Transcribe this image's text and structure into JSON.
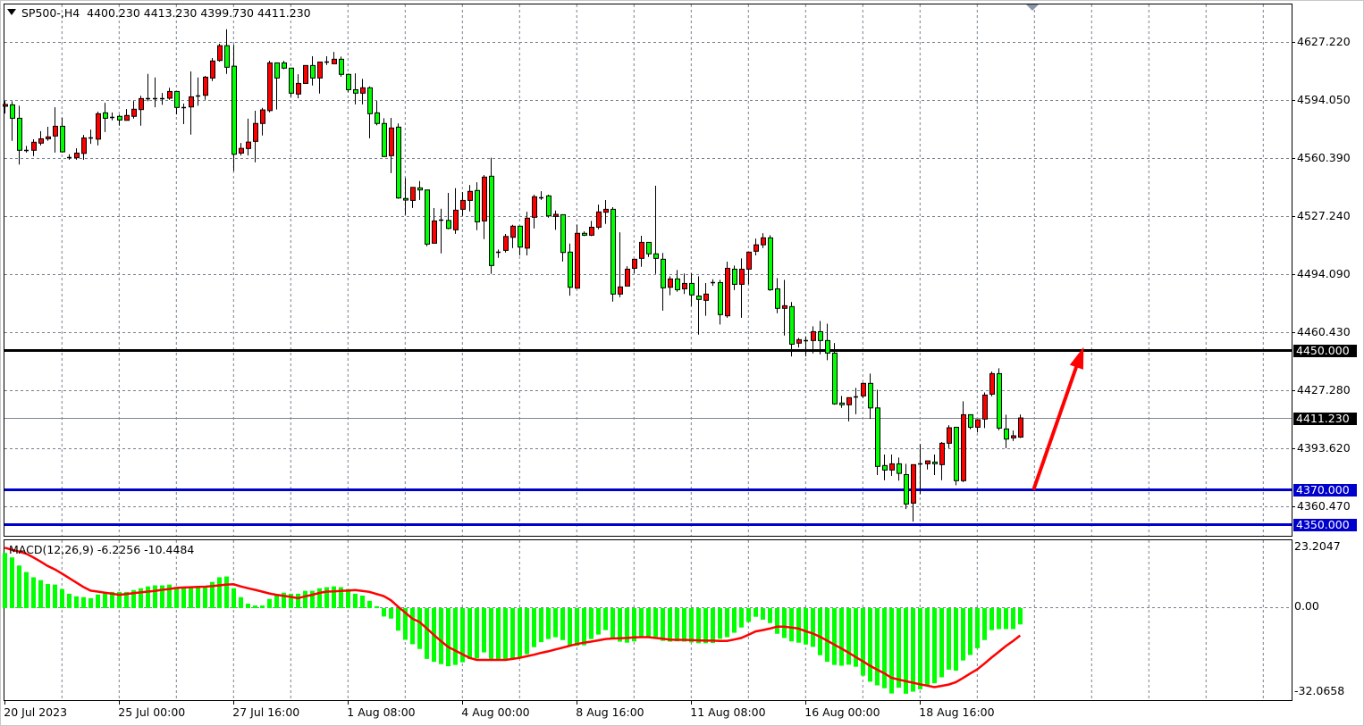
{
  "header": {
    "symbol": "SP500-,H4",
    "ohlc": "4400.230 4413.230 4399.730 4411.230",
    "menu_icon": "triangle-down-icon"
  },
  "colors": {
    "bull_body": "#ff0000",
    "bear_body": "#00ff00",
    "wick": "#000000",
    "grid": "#77808c",
    "resistance": "#000000",
    "support": "#0000cc",
    "macd_hist": "#00ff00",
    "macd_signal": "#ff0000",
    "arrow": "#ff0000",
    "current_price_line": "#808890"
  },
  "price_axis": {
    "labels": [
      "4627.220",
      "4594.050",
      "4560.390",
      "4527.240",
      "4494.090",
      "4460.430",
      "4427.280",
      "4393.620",
      "4360.470"
    ]
  },
  "levels": [
    {
      "price": 4450.0,
      "label": "4450.000",
      "kind": "resistance"
    },
    {
      "price": 4411.23,
      "label": "4411.230",
      "kind": "current"
    },
    {
      "price": 4370.0,
      "label": "4370.000",
      "kind": "support"
    },
    {
      "price": 4350.0,
      "label": "4350.000",
      "kind": "support"
    }
  ],
  "time_axis": [
    {
      "label": "20 Jul 2023",
      "bar": 0
    },
    {
      "label": "25 Jul 00:00",
      "bar": 16
    },
    {
      "label": "27 Jul 16:00",
      "bar": 32
    },
    {
      "label": "1 Aug 08:00",
      "bar": 48
    },
    {
      "label": "4 Aug 00:00",
      "bar": 64
    },
    {
      "label": "8 Aug 16:00",
      "bar": 80
    },
    {
      "label": "11 Aug 08:00",
      "bar": 96
    },
    {
      "label": "16 Aug 00:00",
      "bar": 112
    },
    {
      "label": "18 Aug 16:00",
      "bar": 128
    }
  ],
  "macd": {
    "label": "MACD(12,26,9) -6.2256 -10.4484",
    "axis_labels": [
      "23.2047",
      "0.00",
      "-32.0658"
    ]
  },
  "chart_data": [
    {
      "type": "candlestick",
      "title": "SP500-,H4",
      "timeframe": "H4",
      "ylim": [
        4341.0,
        4651.3
      ],
      "grid": true,
      "annotations": [
        {
          "type": "arrow",
          "from": {
            "bar": 144,
            "price": 4370.0
          },
          "to": {
            "bar": 151,
            "price": 4452.0
          }
        }
      ],
      "ohlc": [
        [
          4590.3,
          4593.3,
          4586.1,
          4591.3
        ],
        [
          4591.1,
          4593.2,
          4570.4,
          4583.4
        ],
        [
          4583.4,
          4590.6,
          4556.8,
          4565.0
        ],
        [
          4565.2,
          4567.5,
          4563.7,
          4565.0
        ],
        [
          4565.0,
          4571.3,
          4561.7,
          4569.6
        ],
        [
          4569.1,
          4576.0,
          4567.8,
          4571.6
        ],
        [
          4571.6,
          4578.5,
          4570.4,
          4572.7
        ],
        [
          4573.2,
          4589.7,
          4563.7,
          4578.8
        ],
        [
          4578.8,
          4583.7,
          4563.7,
          4564.1
        ],
        [
          4561.2,
          4562.7,
          4559.6,
          4561.2
        ],
        [
          4560.7,
          4566.1,
          4559.6,
          4563.4
        ],
        [
          4563.2,
          4573.8,
          4559.6,
          4572.1
        ],
        [
          4572.1,
          4576.9,
          4568.7,
          4572.1
        ],
        [
          4571.4,
          4587.2,
          4567.8,
          4586.0
        ],
        [
          4586.5,
          4592.3,
          4575.5,
          4583.4
        ],
        [
          4584.3,
          4586.7,
          4582.2,
          4584.3
        ],
        [
          4584.5,
          4585.5,
          4579.1,
          4582.4
        ],
        [
          4582.2,
          4588.7,
          4582.2,
          4585.0
        ],
        [
          4584.5,
          4593.3,
          4583.2,
          4588.6
        ],
        [
          4588.4,
          4596.3,
          4579.1,
          4594.7
        ],
        [
          4594.9,
          4608.9,
          4593.2,
          4594.9
        ],
        [
          4594.9,
          4606.8,
          4589.7,
          4594.9
        ],
        [
          4594.9,
          4597.9,
          4591.1,
          4594.9
        ],
        [
          4594.9,
          4600.9,
          4594.0,
          4598.8
        ],
        [
          4598.8,
          4598.8,
          4585.6,
          4589.6
        ],
        [
          4589.9,
          4591.8,
          4580.0,
          4589.9
        ],
        [
          4589.9,
          4610.3,
          4574.0,
          4595.7
        ],
        [
          4596.4,
          4606.8,
          4590.6,
          4596.4
        ],
        [
          4596.6,
          4607.7,
          4594.0,
          4607.0
        ],
        [
          4606.5,
          4618.0,
          4604.8,
          4616.3
        ],
        [
          4616.6,
          4626.2,
          4615.9,
          4625.1
        ],
        [
          4625.1,
          4634.5,
          4608.9,
          4612.7
        ],
        [
          4613.3,
          4625.6,
          4553.0,
          4562.7
        ],
        [
          4563.4,
          4569.2,
          4562.0,
          4566.1
        ],
        [
          4566.0,
          4583.2,
          4562.0,
          4569.7
        ],
        [
          4570.1,
          4587.7,
          4558.1,
          4580.4
        ],
        [
          4580.4,
          4589.4,
          4573.5,
          4588.2
        ],
        [
          4587.8,
          4616.4,
          4586.8,
          4615.2
        ],
        [
          4615.2,
          4615.2,
          4588.4,
          4606.5
        ],
        [
          4615.2,
          4616.4,
          4611.6,
          4612.2
        ],
        [
          4612.2,
          4612.2,
          4595.7,
          4597.8
        ],
        [
          4597.3,
          4608.7,
          4594.9,
          4603.4
        ],
        [
          4603.4,
          4613.7,
          4603.4,
          4613.7
        ],
        [
          4613.7,
          4619.0,
          4602.2,
          4606.5
        ],
        [
          4606.5,
          4615.7,
          4597.6,
          4615.7
        ],
        [
          4615.7,
          4619.0,
          4614.0,
          4615.7
        ],
        [
          4614.7,
          4621.5,
          4614.7,
          4617.3
        ],
        [
          4617.3,
          4618.8,
          4607.3,
          4608.6
        ],
        [
          4608.6,
          4609.1,
          4598.3,
          4599.8
        ],
        [
          4599.8,
          4609.2,
          4591.4,
          4597.8
        ],
        [
          4597.8,
          4606.0,
          4591.4,
          4600.9
        ],
        [
          4600.9,
          4601.7,
          4571.9,
          4586.0
        ],
        [
          4586.5,
          4593.3,
          4579.3,
          4580.4
        ],
        [
          4580.4,
          4583.4,
          4561.4,
          4561.4
        ],
        [
          4561.9,
          4583.6,
          4551.9,
          4577.8
        ],
        [
          4578.3,
          4580.4,
          4537.1,
          4537.6
        ],
        [
          4537.3,
          4549.1,
          4527.8,
          4536.4
        ],
        [
          4536.2,
          4543.7,
          4531.9,
          4543.7
        ],
        [
          4543.4,
          4547.3,
          4536.5,
          4542.2
        ],
        [
          4542.2,
          4542.2,
          4509.9,
          4511.1
        ],
        [
          4511.6,
          4531.8,
          4511.6,
          4524.4
        ],
        [
          4525.1,
          4531.4,
          4505.8,
          4525.1
        ],
        [
          4524.7,
          4540.5,
          4519.6,
          4520.1
        ],
        [
          4519.3,
          4543.2,
          4517.0,
          4530.6
        ],
        [
          4531.1,
          4541.0,
          4527.3,
          4536.2
        ],
        [
          4536.2,
          4545.0,
          4529.9,
          4541.4
        ],
        [
          4541.9,
          4546.6,
          4519.1,
          4523.9
        ],
        [
          4524.4,
          4550.8,
          4514.0,
          4549.6
        ],
        [
          4550.1,
          4560.7,
          4494.0,
          4498.8
        ],
        [
          4506.8,
          4508.0,
          4503.2,
          4506.8
        ],
        [
          4507.5,
          4516.9,
          4506.3,
          4515.5
        ],
        [
          4515.0,
          4522.2,
          4508.8,
          4521.4
        ],
        [
          4521.4,
          4521.4,
          4504.6,
          4509.4
        ],
        [
          4508.8,
          4529.7,
          4504.6,
          4526.0
        ],
        [
          4526.5,
          4539.5,
          4520.1,
          4538.3
        ],
        [
          4537.9,
          4541.5,
          4536.5,
          4537.9
        ],
        [
          4538.8,
          4539.5,
          4526.3,
          4527.3
        ],
        [
          4527.0,
          4530.4,
          4519.3,
          4528.2
        ],
        [
          4528.0,
          4528.0,
          4501.1,
          4506.3
        ],
        [
          4506.5,
          4511.4,
          4481.5,
          4486.3
        ],
        [
          4485.8,
          4522.2,
          4485.8,
          4517.3
        ],
        [
          4517.3,
          4518.4,
          4515.7,
          4516.2
        ],
        [
          4516.2,
          4524.4,
          4515.7,
          4520.8
        ],
        [
          4520.8,
          4533.8,
          4519.6,
          4529.6
        ],
        [
          4529.4,
          4536.4,
          4522.7,
          4531.1
        ],
        [
          4531.1,
          4532.3,
          4478.1,
          4482.4
        ],
        [
          4482.4,
          4517.9,
          4480.6,
          4486.5
        ],
        [
          4487.0,
          4498.4,
          4487.0,
          4496.7
        ],
        [
          4497.2,
          4502.4,
          4494.3,
          4502.4
        ],
        [
          4502.9,
          4515.9,
          4498.1,
          4512.1
        ],
        [
          4512.1,
          4512.1,
          4503.7,
          4505.5
        ],
        [
          4505.5,
          4544.6,
          4494.0,
          4502.9
        ],
        [
          4502.4,
          4506.0,
          4472.9,
          4486.0
        ],
        [
          4486.3,
          4492.6,
          4481.7,
          4491.1
        ],
        [
          4491.1,
          4496.2,
          4483.7,
          4484.9
        ],
        [
          4485.4,
          4494.2,
          4482.4,
          4488.5
        ],
        [
          4488.5,
          4494.3,
          4475.5,
          4481.9
        ],
        [
          4481.3,
          4492.6,
          4459.1,
          4479.3
        ],
        [
          4478.8,
          4488.7,
          4469.9,
          4482.4
        ],
        [
          4489.2,
          4490.9,
          4487.1,
          4489.2
        ],
        [
          4489.0,
          4490.6,
          4464.9,
          4470.6
        ],
        [
          4469.9,
          4501.0,
          4468.8,
          4497.2
        ],
        [
          4496.7,
          4498.8,
          4484.7,
          4488.0
        ],
        [
          4488.0,
          4502.9,
          4468.8,
          4496.7
        ],
        [
          4496.7,
          4506.5,
          4488.0,
          4506.5
        ],
        [
          4507.0,
          4514.3,
          4504.6,
          4510.7
        ],
        [
          4510.7,
          4517.4,
          4508.8,
          4514.7
        ],
        [
          4514.7,
          4516.2,
          4484.2,
          4484.9
        ],
        [
          4485.4,
          4491.6,
          4471.4,
          4474.2
        ],
        [
          4474.2,
          4490.6,
          4458.6,
          4475.7
        ],
        [
          4475.2,
          4477.8,
          4446.6,
          4453.6
        ],
        [
          4454.2,
          4457.2,
          4451.7,
          4456.2
        ],
        [
          4456.0,
          4458.1,
          4446.6,
          4456.0
        ],
        [
          4455.7,
          4463.9,
          4448.3,
          4460.8
        ],
        [
          4460.8,
          4467.0,
          4447.8,
          4455.7
        ],
        [
          4455.7,
          4465.4,
          4444.4,
          4448.5
        ],
        [
          4448.5,
          4454.3,
          4418.8,
          4419.3
        ],
        [
          4419.8,
          4423.9,
          4417.0,
          4418.8
        ],
        [
          4418.8,
          4422.9,
          4409.3,
          4422.9
        ],
        [
          4423.7,
          4428.5,
          4413.4,
          4423.7
        ],
        [
          4423.9,
          4431.6,
          4422.7,
          4431.1
        ],
        [
          4431.1,
          4436.7,
          4410.7,
          4417.0
        ],
        [
          4417.0,
          4427.5,
          4378.4,
          4383.4
        ],
        [
          4383.9,
          4390.2,
          4375.5,
          4381.3
        ],
        [
          4381.3,
          4390.2,
          4378.0,
          4384.9
        ],
        [
          4384.9,
          4388.5,
          4375.2,
          4379.4
        ],
        [
          4378.7,
          4384.9,
          4358.9,
          4361.8
        ],
        [
          4362.3,
          4384.4,
          4351.7,
          4384.4
        ],
        [
          4384.9,
          4396.2,
          4367.5,
          4384.9
        ],
        [
          4384.9,
          4386.6,
          4381.6,
          4386.6
        ],
        [
          4385.9,
          4390.2,
          4378.4,
          4384.9
        ],
        [
          4384.4,
          4397.4,
          4375.5,
          4396.7
        ],
        [
          4396.7,
          4407.1,
          4393.9,
          4405.6
        ],
        [
          4405.9,
          4405.9,
          4372.6,
          4375.2
        ],
        [
          4375.2,
          4420.8,
          4374.4,
          4413.1
        ],
        [
          4413.1,
          4413.1,
          4404.7,
          4405.9
        ],
        [
          4405.9,
          4410.2,
          4402.9,
          4410.2
        ],
        [
          4410.6,
          4425.9,
          4405.4,
          4424.4
        ],
        [
          4424.9,
          4437.9,
          4423.7,
          4436.7
        ],
        [
          4436.7,
          4439.8,
          4404.2,
          4405.4
        ],
        [
          4404.9,
          4413.1,
          4393.9,
          4399.1
        ],
        [
          4399.8,
          4404.0,
          4398.0,
          4401.0
        ],
        [
          4400.23,
          4413.23,
          4399.73,
          4411.23
        ]
      ]
    },
    {
      "type": "bar",
      "title": "MACD(12,26,9)",
      "ylim": [
        -32.0658,
        23.2047
      ],
      "histogram": [
        21.1,
        19.4,
        16.3,
        13.8,
        11.8,
        10.7,
        9.2,
        9.0,
        7.3,
        5.5,
        4.5,
        4.2,
        3.8,
        5.2,
        5.9,
        6.2,
        6.2,
        6.2,
        6.9,
        7.6,
        8.3,
        8.7,
        8.7,
        9.0,
        8.0,
        7.6,
        8.3,
        8.3,
        8.3,
        10.0,
        11.8,
        12.1,
        7.6,
        4.2,
        1.7,
        1.0,
        1.0,
        3.5,
        4.8,
        5.9,
        5.5,
        5.5,
        6.6,
        6.6,
        7.6,
        8.0,
        8.3,
        8.0,
        7.3,
        5.5,
        4.8,
        2.8,
        0.7,
        -3.2,
        -4.0,
        -8.6,
        -12.1,
        -13.8,
        -15.6,
        -19.4,
        -20.5,
        -21.4,
        -22.2,
        -21.7,
        -20.7,
        -19.5,
        -19.2,
        -16.9,
        -19.5,
        -19.5,
        -19.5,
        -19.1,
        -19.0,
        -17.6,
        -14.9,
        -13.0,
        -11.8,
        -11.1,
        -12.2,
        -14.3,
        -14.4,
        -14.2,
        -11.8,
        -10.1,
        -8.4,
        -11.4,
        -12.8,
        -13.2,
        -12.7,
        -11.4,
        -11.1,
        -11.0,
        -12.5,
        -12.8,
        -12.7,
        -12.8,
        -13.1,
        -13.4,
        -13.4,
        -13.3,
        -11.7,
        -11.1,
        -9.4,
        -7.4,
        -5.3,
        -3.3,
        -4.4,
        -5.7,
        -9.8,
        -11.4,
        -12.7,
        -13.2,
        -13.9,
        -14.8,
        -18.0,
        -20.5,
        -21.7,
        -22.0,
        -21.6,
        -22.4,
        -25.8,
        -28.1,
        -29.5,
        -30.6,
        -32.6,
        -30.4,
        -32.7,
        -31.9,
        -31.0,
        -29.8,
        -28.7,
        -26.4,
        -23.5,
        -23.9,
        -20.0,
        -17.9,
        -15.3,
        -12.2,
        -8.4,
        -8.0,
        -8.0,
        -8.0,
        -6.2256
      ],
      "signal": [
        23.1,
        22.3,
        21.6,
        20.8,
        19.4,
        17.8,
        16.1,
        14.8,
        13.2,
        11.5,
        9.8,
        8.1,
        6.7,
        6.3,
        5.9,
        5.5,
        5.1,
        5.4,
        5.7,
        6.0,
        6.3,
        6.6,
        7.0,
        7.3,
        7.7,
        7.9,
        8.0,
        8.1,
        8.2,
        8.4,
        8.7,
        9.0,
        9.1,
        8.3,
        7.6,
        7.0,
        6.3,
        5.6,
        5.1,
        4.7,
        4.3,
        3.8,
        4.5,
        5.1,
        5.8,
        6.3,
        6.4,
        6.6,
        6.7,
        6.9,
        6.6,
        6.2,
        5.4,
        4.6,
        3.0,
        0.6,
        -1.7,
        -4.0,
        -5.3,
        -7.7,
        -10.2,
        -12.6,
        -14.8,
        -16.2,
        -17.6,
        -19.0,
        -19.8,
        -19.8,
        -19.8,
        -19.8,
        -19.8,
        -19.4,
        -19.0,
        -18.4,
        -17.8,
        -17.1,
        -16.5,
        -15.8,
        -15.1,
        -14.4,
        -13.7,
        -13.2,
        -12.8,
        -12.3,
        -11.8,
        -11.6,
        -11.5,
        -11.4,
        -11.2,
        -11.1,
        -11.1,
        -11.4,
        -11.7,
        -12.0,
        -12.1,
        -12.1,
        -12.2,
        -12.3,
        -12.4,
        -12.4,
        -12.5,
        -12.5,
        -12.0,
        -11.4,
        -10.2,
        -8.9,
        -8.4,
        -7.8,
        -7.1,
        -7.1,
        -7.4,
        -7.8,
        -8.8,
        -9.7,
        -10.9,
        -12.4,
        -13.9,
        -15.4,
        -17.0,
        -18.7,
        -20.3,
        -22.0,
        -23.5,
        -24.9,
        -26.6,
        -27.3,
        -27.9,
        -28.5,
        -29.1,
        -29.6,
        -30.2,
        -29.7,
        -29.2,
        -28.3,
        -26.7,
        -25.0,
        -23.4,
        -21.2,
        -18.9,
        -16.7,
        -14.5,
        -12.6,
        -10.4484
      ]
    }
  ]
}
